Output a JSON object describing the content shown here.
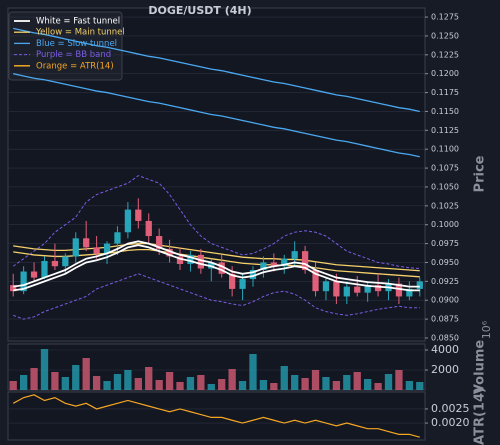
{
  "chart_data": [
    {
      "type": "candlestick",
      "title": "DOGE/USDT (4H)",
      "ylabel": "Price",
      "up_color": "#26a6b8",
      "down_color": "#e0607a",
      "ylim": [
        0.0846,
        0.1287
      ],
      "yticks": [
        0.1275,
        {
          "value": 0.125,
          "label": "0.1250"
        },
        0.1225,
        {
          "value": 0.12,
          "label": "0.1200"
        },
        0.1175,
        {
          "value": 0.115,
          "label": "0.1150"
        },
        0.1125,
        {
          "value": 0.11,
          "label": "0.1100"
        },
        0.1075,
        {
          "value": 0.105,
          "label": "0.1050"
        },
        0.1025,
        {
          "value": 0.1,
          "label": "0.1000"
        },
        0.0975,
        {
          "value": 0.095,
          "label": "0.0950"
        },
        0.0925,
        {
          "value": 0.09,
          "label": "0.0900"
        },
        0.0875,
        {
          "value": 0.085,
          "label": "0.0850"
        }
      ],
      "grid": true,
      "open": [
        0.092,
        0.0912,
        0.0938,
        0.093,
        0.0952,
        0.0945,
        0.0958,
        0.0982,
        0.097,
        0.0962,
        0.0975,
        0.099,
        0.102,
        0.1005,
        0.0985,
        0.0968,
        0.0958,
        0.0948,
        0.096,
        0.0942,
        0.095,
        0.0935,
        0.0915,
        0.0928,
        0.094,
        0.095,
        0.0945,
        0.0955,
        0.0965,
        0.094,
        0.0912,
        0.0925,
        0.0905,
        0.0918,
        0.091,
        0.092,
        0.0912,
        0.0922,
        0.0905,
        0.0915
      ],
      "high": [
        0.0935,
        0.0945,
        0.095,
        0.0958,
        0.0975,
        0.0962,
        0.099,
        0.1005,
        0.0985,
        0.0978,
        0.0998,
        0.103,
        0.1035,
        0.1015,
        0.0995,
        0.098,
        0.097,
        0.0965,
        0.0968,
        0.0955,
        0.096,
        0.0945,
        0.0935,
        0.0945,
        0.0958,
        0.0962,
        0.096,
        0.0978,
        0.0972,
        0.095,
        0.093,
        0.0935,
        0.0925,
        0.0932,
        0.0925,
        0.0935,
        0.0928,
        0.093,
        0.0925,
        0.093
      ],
      "low": [
        0.0905,
        0.0908,
        0.0925,
        0.0928,
        0.094,
        0.0935,
        0.095,
        0.0965,
        0.0955,
        0.0948,
        0.096,
        0.0982,
        0.0995,
        0.0975,
        0.096,
        0.095,
        0.094,
        0.0938,
        0.0935,
        0.0925,
        0.093,
        0.0905,
        0.09,
        0.0918,
        0.093,
        0.0938,
        0.0935,
        0.0945,
        0.0935,
        0.0905,
        0.09,
        0.0895,
        0.0895,
        0.0905,
        0.0898,
        0.0905,
        0.09,
        0.0895,
        0.09,
        0.0905
      ],
      "close": [
        0.0912,
        0.0938,
        0.093,
        0.0952,
        0.0945,
        0.0958,
        0.0982,
        0.097,
        0.0962,
        0.0975,
        0.099,
        0.102,
        0.1005,
        0.0985,
        0.0968,
        0.0958,
        0.0948,
        0.096,
        0.0942,
        0.095,
        0.0935,
        0.0915,
        0.0928,
        0.094,
        0.095,
        0.0945,
        0.0955,
        0.0965,
        0.094,
        0.0912,
        0.0925,
        0.0905,
        0.0918,
        0.091,
        0.092,
        0.0912,
        0.0922,
        0.0905,
        0.0915,
        0.0925
      ],
      "overlays": [
        {
          "name": "White = Fast tunnel",
          "color": "#ffffff",
          "dash": false,
          "width": 1.8,
          "upper": [
            0.0918,
            0.092,
            0.0925,
            0.093,
            0.0935,
            0.094,
            0.0948,
            0.0955,
            0.0958,
            0.0962,
            0.0968,
            0.0975,
            0.0978,
            0.0975,
            0.097,
            0.0965,
            0.096,
            0.0957,
            0.0953,
            0.095,
            0.0945,
            0.0938,
            0.0935,
            0.0937,
            0.0942,
            0.0945,
            0.0947,
            0.095,
            0.0948,
            0.094,
            0.0935,
            0.093,
            0.0928,
            0.0926,
            0.0924,
            0.0923,
            0.0922,
            0.092,
            0.0918,
            0.0918
          ],
          "lower": [
            0.0913,
            0.0915,
            0.092,
            0.0925,
            0.093,
            0.0935,
            0.0943,
            0.095,
            0.0953,
            0.0957,
            0.0963,
            0.097,
            0.0973,
            0.097,
            0.0965,
            0.096,
            0.0955,
            0.0952,
            0.0948,
            0.0945,
            0.094,
            0.0933,
            0.093,
            0.0932,
            0.0937,
            0.094,
            0.0942,
            0.0945,
            0.0943,
            0.0935,
            0.093,
            0.0925,
            0.0923,
            0.0921,
            0.0919,
            0.0918,
            0.0917,
            0.0915,
            0.0913,
            0.0913
          ]
        },
        {
          "name": "Yellow = Main tunnel",
          "color": "#f5d06a",
          "dash": false,
          "width": 1.3,
          "upper": [
            0.0972,
            0.097,
            0.0968,
            0.0967,
            0.0966,
            0.0966,
            0.0967,
            0.0968,
            0.0969,
            0.097,
            0.0972,
            0.0974,
            0.0975,
            0.0975,
            0.0973,
            0.0971,
            0.0969,
            0.0967,
            0.0965,
            0.0963,
            0.0961,
            0.0959,
            0.0957,
            0.0956,
            0.0955,
            0.0955,
            0.0954,
            0.0954,
            0.0953,
            0.0951,
            0.0949,
            0.0947,
            0.0946,
            0.0945,
            0.0944,
            0.0943,
            0.0942,
            0.0941,
            0.094,
            0.0939
          ],
          "lower": [
            0.0964,
            0.0962,
            0.096,
            0.0959,
            0.0958,
            0.0958,
            0.0959,
            0.096,
            0.0961,
            0.0962,
            0.0964,
            0.0966,
            0.0967,
            0.0967,
            0.0965,
            0.0963,
            0.0961,
            0.0959,
            0.0957,
            0.0955,
            0.0953,
            0.0951,
            0.0949,
            0.0948,
            0.0947,
            0.0947,
            0.0946,
            0.0946,
            0.0945,
            0.0943,
            0.0941,
            0.0939,
            0.0938,
            0.0937,
            0.0936,
            0.0935,
            0.0934,
            0.0933,
            0.0932,
            0.0931
          ]
        },
        {
          "name": "Blue = Slow tunnel",
          "color": "#4aa8f0",
          "dash": false,
          "width": 1.3,
          "upper": [
            0.126,
            0.1257,
            0.1254,
            0.1252,
            0.1249,
            0.1246,
            0.1243,
            0.124,
            0.1237,
            0.1235,
            0.1232,
            0.1229,
            0.1226,
            0.1223,
            0.1221,
            0.1218,
            0.1215,
            0.1212,
            0.1209,
            0.1206,
            0.1204,
            0.1201,
            0.1198,
            0.1195,
            0.1192,
            0.1189,
            0.1187,
            0.1184,
            0.1181,
            0.1178,
            0.1175,
            0.1172,
            0.117,
            0.1167,
            0.1164,
            0.1161,
            0.1158,
            0.1155,
            0.1153,
            0.115
          ],
          "lower": [
            0.12,
            0.1197,
            0.1194,
            0.1192,
            0.1189,
            0.1186,
            0.1183,
            0.118,
            0.1177,
            0.1175,
            0.1172,
            0.1169,
            0.1166,
            0.1163,
            0.1161,
            0.1158,
            0.1155,
            0.1152,
            0.1149,
            0.1146,
            0.1144,
            0.1141,
            0.1138,
            0.1135,
            0.1132,
            0.1129,
            0.1127,
            0.1124,
            0.1121,
            0.1118,
            0.1115,
            0.1112,
            0.111,
            0.1107,
            0.1104,
            0.1101,
            0.1098,
            0.1095,
            0.1093,
            0.109
          ]
        },
        {
          "name": "Purple = BB band",
          "color": "#7b5ce6",
          "dash": true,
          "width": 1,
          "upper": [
            0.0945,
            0.0955,
            0.0965,
            0.0975,
            0.099,
            0.1,
            0.101,
            0.103,
            0.104,
            0.1045,
            0.105,
            0.1055,
            0.1065,
            0.106,
            0.1055,
            0.104,
            0.102,
            0.1,
            0.0985,
            0.0975,
            0.097,
            0.0965,
            0.096,
            0.0962,
            0.0968,
            0.0975,
            0.0985,
            0.099,
            0.0992,
            0.099,
            0.0985,
            0.0975,
            0.0965,
            0.096,
            0.0955,
            0.095,
            0.0948,
            0.0945,
            0.0943,
            0.0942
          ],
          "lower": [
            0.088,
            0.0875,
            0.0878,
            0.0885,
            0.089,
            0.0895,
            0.09,
            0.0905,
            0.0915,
            0.092,
            0.0925,
            0.093,
            0.0935,
            0.093,
            0.0925,
            0.092,
            0.0915,
            0.091,
            0.0905,
            0.09,
            0.0898,
            0.0895,
            0.0893,
            0.0898,
            0.0905,
            0.091,
            0.0912,
            0.0908,
            0.09,
            0.089,
            0.0885,
            0.0882,
            0.088,
            0.0882,
            0.0885,
            0.0888,
            0.089,
            0.0892,
            0.089,
            0.089
          ]
        }
      ]
    },
    {
      "type": "bar",
      "ylabel": "Volume",
      "offset_label": "10⁶",
      "ylim": [
        0,
        4600
      ],
      "yticks": [
        2000,
        4000
      ],
      "grid": true,
      "values": [
        900,
        1500,
        2200,
        4100,
        1800,
        1300,
        2500,
        3200,
        1400,
        900,
        1600,
        2000,
        1200,
        2300,
        1000,
        1800,
        800,
        1300,
        1500,
        600,
        1100,
        2100,
        900,
        3600,
        1000,
        700,
        2400,
        1500,
        1200,
        2000,
        1300,
        900,
        1500,
        1800,
        1100,
        700,
        1600,
        2000,
        900,
        800
      ]
    },
    {
      "type": "line",
      "ylabel": "ATR(14)",
      "ylim": [
        0.0014,
        0.0031
      ],
      "yticks": [
        0.0025,
        {
          "value": 0.002,
          "label": "0.0020"
        }
      ],
      "grid": true,
      "series": [
        {
          "name": "Orange = ATR(14)",
          "color": "#f5a623",
          "values": [
            0.0027,
            0.0029,
            0.003,
            0.0028,
            0.0029,
            0.0027,
            0.0026,
            0.0027,
            0.0025,
            0.0026,
            0.0027,
            0.0028,
            0.0027,
            0.0026,
            0.0025,
            0.0024,
            0.0025,
            0.0024,
            0.0023,
            0.0022,
            0.0022,
            0.0021,
            0.002,
            0.0021,
            0.0022,
            0.0021,
            0.002,
            0.0021,
            0.002,
            0.0021,
            0.002,
            0.0019,
            0.002,
            0.0019,
            0.0018,
            0.0018,
            0.0017,
            0.0016,
            0.0016,
            0.0015
          ]
        }
      ]
    }
  ]
}
